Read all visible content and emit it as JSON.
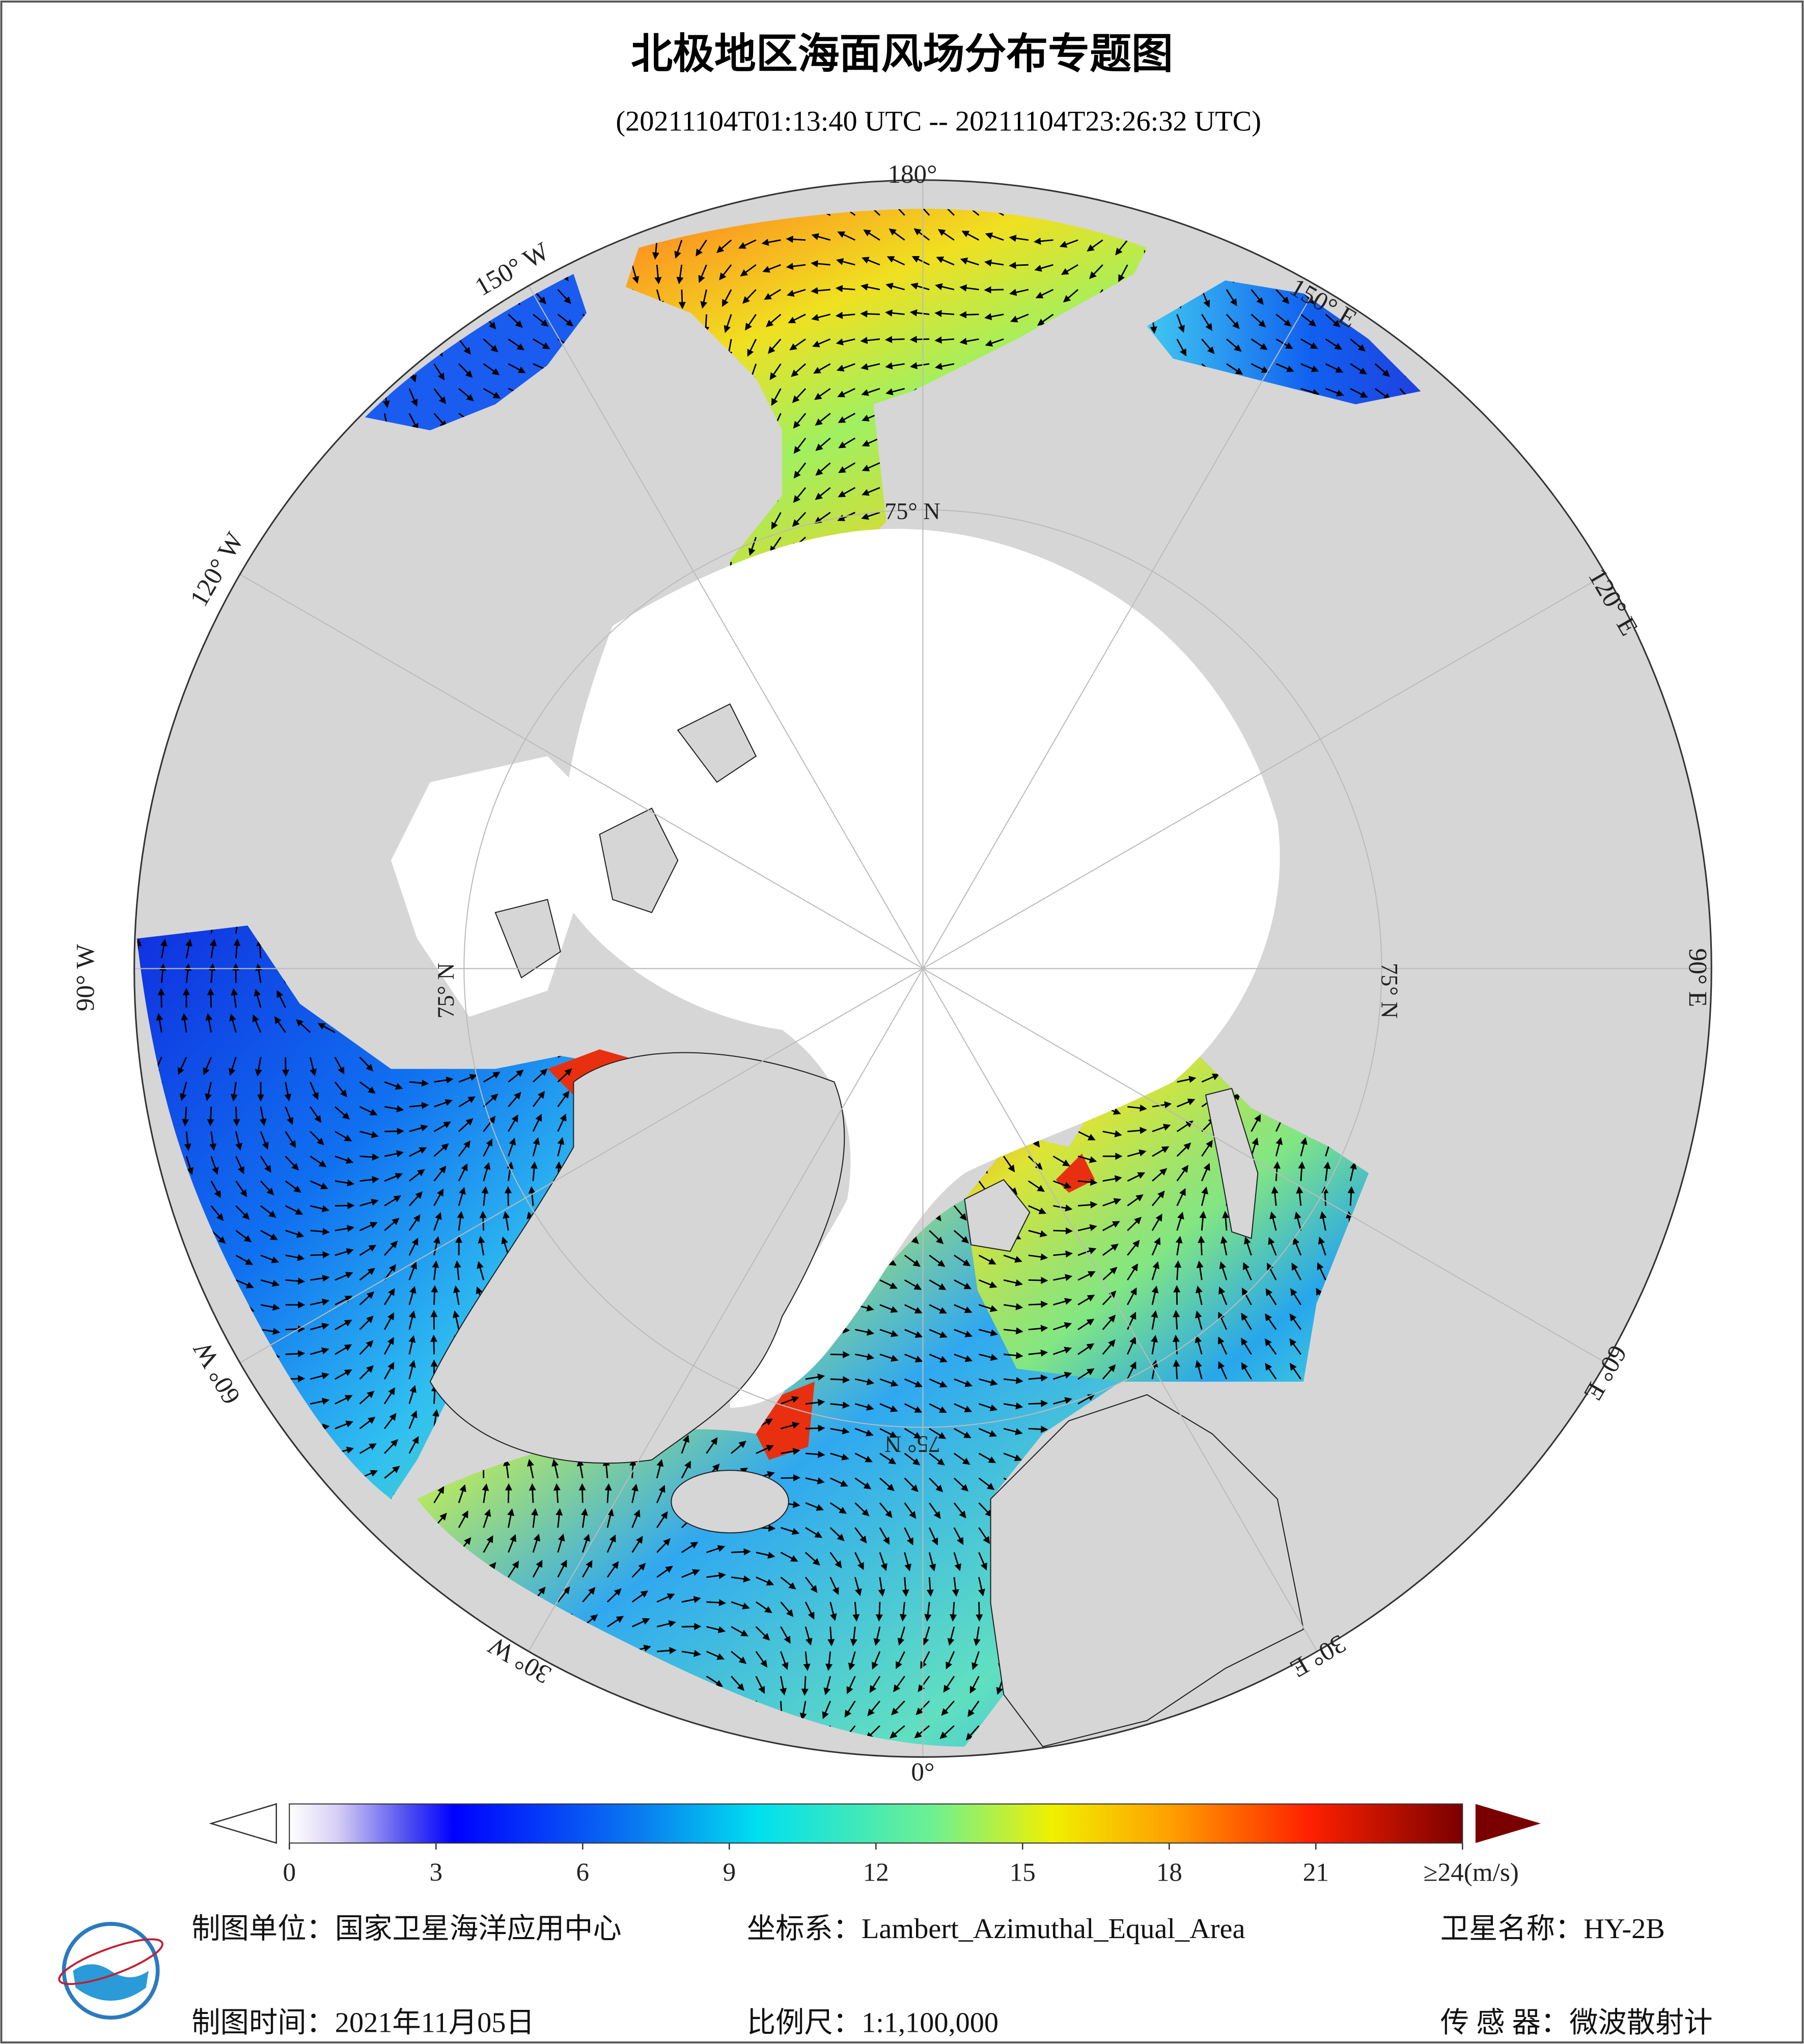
{
  "header": {
    "title": "北极地区海面风场分布专题图",
    "subtitle": "(20211104T01:13:40 UTC -- 20211104T23:26:32 UTC)"
  },
  "map": {
    "longitude_labels": [
      "180°",
      "150° E",
      "120° E",
      "90° E",
      "60° E",
      "30° E",
      "0°",
      "30° W",
      "60° W",
      "90° W",
      "120° W",
      "150° W"
    ],
    "latitude_labels": [
      "75° N",
      "75° N",
      "75° N",
      "75° N"
    ]
  },
  "colorbar": {
    "ticks": [
      0,
      3,
      6,
      9,
      12,
      15,
      18,
      21,
      {
        "value": 24,
        "label": "≥24(m/s)"
      }
    ]
  },
  "footer": {
    "unit": "制图单位：国家卫星海洋应用中心",
    "projection": "坐标系：Lambert_Azimuthal_Equal_Area",
    "satellite": "卫星名称：HY-2B",
    "date": "制图时间：2021年11月05日",
    "scale": "比例尺：1:1,100,000",
    "sensor": "传 感 器：微波散射计"
  }
}
